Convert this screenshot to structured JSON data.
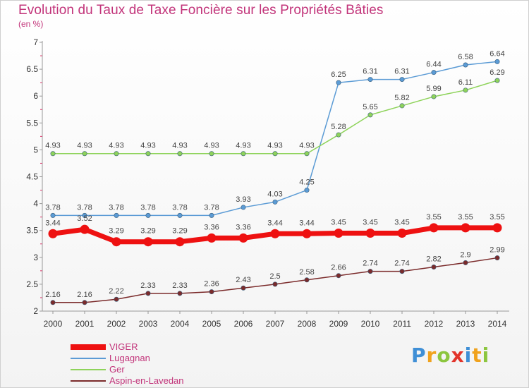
{
  "header": {
    "title": "Evolution du Taux de Taxe Foncière sur les Propriétés Bâties",
    "unit": "(en %)"
  },
  "logo": {
    "text": "Proxiti",
    "letters": [
      {
        "char": "P",
        "color": "#3f8fd6"
      },
      {
        "char": "r",
        "color": "#f0a21d"
      },
      {
        "char": "o",
        "color": "#8cc63f"
      },
      {
        "char": "x",
        "color": "#e2342b"
      },
      {
        "char": "i",
        "color": "#3f8fd6"
      },
      {
        "char": "t",
        "color": "#f0a21d"
      },
      {
        "char": "i",
        "color": "#8cc63f"
      }
    ]
  },
  "chart_data": {
    "type": "line",
    "x": [
      "2000",
      "2001",
      "2002",
      "2003",
      "2004",
      "2005",
      "2006",
      "2007",
      "2008",
      "2009",
      "2010",
      "2011",
      "2012",
      "2013",
      "2014"
    ],
    "ylim": [
      2,
      7
    ],
    "yticks": [
      "2",
      "2.5",
      "3",
      "3.5",
      "4",
      "4.5",
      "5",
      "5.5",
      "6",
      "6.5",
      "7"
    ],
    "grid": false,
    "legend_position": "bottom-left",
    "series": [
      {
        "name": "VIGER",
        "color": "#ee1111",
        "values": [
          3.44,
          3.52,
          3.29,
          3.29,
          3.29,
          3.36,
          3.36,
          3.44,
          3.44,
          3.45,
          3.45,
          3.45,
          3.55,
          3.55,
          3.55
        ],
        "labels": [
          "3.44",
          "3.52",
          "3.29",
          "3.29",
          "3.29",
          "3.36",
          "3.36",
          "3.44",
          "3.44",
          "3.45",
          "3.45",
          "3.45",
          "3.55",
          "3.55",
          "3.55"
        ]
      },
      {
        "name": "Lugagnan",
        "color": "#5b9bd5",
        "values": [
          3.78,
          3.78,
          3.78,
          3.78,
          3.78,
          3.78,
          3.93,
          4.03,
          4.25,
          6.25,
          6.31,
          6.31,
          6.44,
          6.58,
          6.64
        ],
        "labels": [
          "3.78",
          "3.78",
          "3.78",
          "3.78",
          "3.78",
          "3.78",
          "3.93",
          "4.03",
          "4.25",
          "6.25",
          "6.31",
          "6.31",
          "6.44",
          "6.58",
          "6.64"
        ]
      },
      {
        "name": "Ger",
        "color": "#8ed35a",
        "values": [
          4.93,
          4.93,
          4.93,
          4.93,
          4.93,
          4.93,
          4.93,
          4.93,
          4.93,
          5.28,
          5.65,
          5.82,
          5.99,
          6.11,
          6.29
        ],
        "labels": [
          "4.93",
          "4.93",
          "4.93",
          "4.93",
          "4.93",
          "4.93",
          "4.93",
          "4.93",
          "4.93",
          "5.28",
          "5.65",
          "5.82",
          "5.99",
          "6.11",
          "6.29"
        ]
      },
      {
        "name": "Aspin-en-Lavedan",
        "color": "#7b2b2b",
        "values": [
          2.16,
          2.16,
          2.22,
          2.33,
          2.33,
          2.36,
          2.43,
          2.5,
          2.58,
          2.66,
          2.74,
          2.74,
          2.82,
          2.9,
          2.99
        ],
        "labels": [
          "2.16",
          "2.16",
          "2.22",
          "2.33",
          "2.33",
          "2.36",
          "2.43",
          "2.5",
          "2.58",
          "2.66",
          "2.74",
          "2.74",
          "2.82",
          "2.9",
          "2.99"
        ]
      }
    ]
  }
}
